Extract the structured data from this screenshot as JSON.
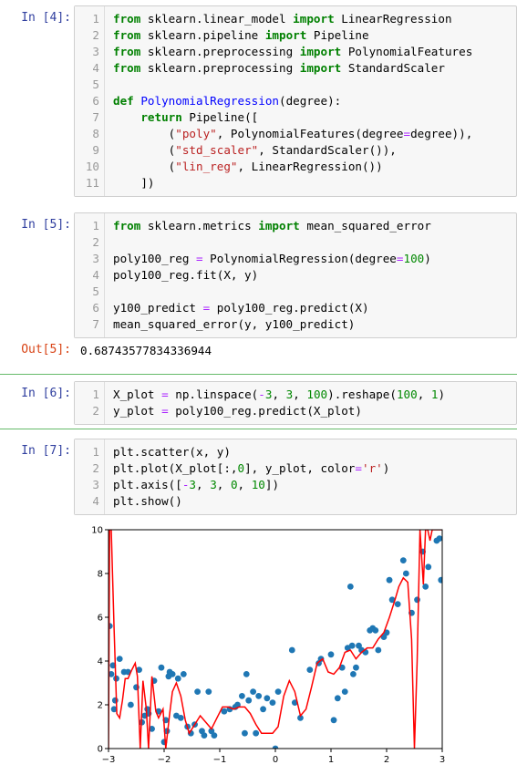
{
  "cells": [
    {
      "prompt": "In  [4]:",
      "lines": [
        {
          "n": "1",
          "tokens": [
            {
              "t": "from",
              "c": "kw"
            },
            {
              "t": " sklearn.linear_model ",
              "c": ""
            },
            {
              "t": "import",
              "c": "kw"
            },
            {
              "t": " LinearRegression",
              "c": ""
            }
          ]
        },
        {
          "n": "2",
          "tokens": [
            {
              "t": "from",
              "c": "kw"
            },
            {
              "t": " sklearn.pipeline ",
              "c": ""
            },
            {
              "t": "import",
              "c": "kw"
            },
            {
              "t": " Pipeline",
              "c": ""
            }
          ]
        },
        {
          "n": "3",
          "tokens": [
            {
              "t": "from",
              "c": "kw"
            },
            {
              "t": " sklearn.preprocessing ",
              "c": ""
            },
            {
              "t": "import",
              "c": "kw"
            },
            {
              "t": " PolynomialFeatures",
              "c": ""
            }
          ]
        },
        {
          "n": "4",
          "tokens": [
            {
              "t": "from",
              "c": "kw"
            },
            {
              "t": " sklearn.preprocessing ",
              "c": ""
            },
            {
              "t": "import",
              "c": "kw"
            },
            {
              "t": " StandardScaler",
              "c": ""
            }
          ]
        },
        {
          "n": "5",
          "tokens": []
        },
        {
          "n": "6",
          "tokens": [
            {
              "t": "def",
              "c": "kw"
            },
            {
              "t": " ",
              "c": ""
            },
            {
              "t": "PolynomialRegression",
              "c": "fn"
            },
            {
              "t": "(degree):",
              "c": ""
            }
          ]
        },
        {
          "n": "7",
          "tokens": [
            {
              "t": "    ",
              "c": ""
            },
            {
              "t": "return",
              "c": "kw"
            },
            {
              "t": " Pipeline([",
              "c": ""
            }
          ]
        },
        {
          "n": "8",
          "tokens": [
            {
              "t": "        (",
              "c": ""
            },
            {
              "t": "\"poly\"",
              "c": "str"
            },
            {
              "t": ", PolynomialFeatures(degree",
              "c": ""
            },
            {
              "t": "=",
              "c": "op"
            },
            {
              "t": "degree)),",
              "c": ""
            }
          ]
        },
        {
          "n": "9",
          "tokens": [
            {
              "t": "        (",
              "c": ""
            },
            {
              "t": "\"std_scaler\"",
              "c": "str"
            },
            {
              "t": ", StandardScaler()),",
              "c": ""
            }
          ]
        },
        {
          "n": "10",
          "tokens": [
            {
              "t": "        (",
              "c": ""
            },
            {
              "t": "\"lin_reg\"",
              "c": "str"
            },
            {
              "t": ", LinearRegression())",
              "c": ""
            }
          ]
        },
        {
          "n": "11",
          "tokens": [
            {
              "t": "    ])",
              "c": ""
            }
          ]
        }
      ]
    },
    {
      "prompt": "In  [5]:",
      "lines": [
        {
          "n": "1",
          "tokens": [
            {
              "t": "from",
              "c": "kw"
            },
            {
              "t": " sklearn.metrics ",
              "c": ""
            },
            {
              "t": "import",
              "c": "kw"
            },
            {
              "t": " mean_squared_error",
              "c": ""
            }
          ]
        },
        {
          "n": "2",
          "tokens": []
        },
        {
          "n": "3",
          "tokens": [
            {
              "t": "poly100_reg ",
              "c": ""
            },
            {
              "t": "=",
              "c": "op"
            },
            {
              "t": " PolynomialRegression(degree",
              "c": ""
            },
            {
              "t": "=",
              "c": "op"
            },
            {
              "t": "100",
              "c": "num"
            },
            {
              "t": ")",
              "c": ""
            }
          ]
        },
        {
          "n": "4",
          "tokens": [
            {
              "t": "poly100_reg.fit(X, y)",
              "c": ""
            }
          ]
        },
        {
          "n": "5",
          "tokens": []
        },
        {
          "n": "6",
          "tokens": [
            {
              "t": "y100_predict ",
              "c": ""
            },
            {
              "t": "=",
              "c": "op"
            },
            {
              "t": " poly100_reg.predict(X)",
              "c": ""
            }
          ]
        },
        {
          "n": "7",
          "tokens": [
            {
              "t": "mean_squared_error(y, y100_predict)",
              "c": ""
            }
          ]
        }
      ],
      "out_prompt": "Out[5]:",
      "output": "0.68743577834336944"
    },
    {
      "prompt": "In  [6]:",
      "lines": [
        {
          "n": "1",
          "tokens": [
            {
              "t": "X_plot ",
              "c": ""
            },
            {
              "t": "=",
              "c": "op"
            },
            {
              "t": " np.linspace(",
              "c": ""
            },
            {
              "t": "-",
              "c": "op"
            },
            {
              "t": "3",
              "c": "num"
            },
            {
              "t": ", ",
              "c": ""
            },
            {
              "t": "3",
              "c": "num"
            },
            {
              "t": ", ",
              "c": ""
            },
            {
              "t": "100",
              "c": "num"
            },
            {
              "t": ").reshape(",
              "c": ""
            },
            {
              "t": "100",
              "c": "num"
            },
            {
              "t": ", ",
              "c": ""
            },
            {
              "t": "1",
              "c": "num"
            },
            {
              "t": ")",
              "c": ""
            }
          ]
        },
        {
          "n": "2",
          "tokens": [
            {
              "t": "y_plot ",
              "c": ""
            },
            {
              "t": "=",
              "c": "op"
            },
            {
              "t": " poly100_reg.predict(X_plot)",
              "c": ""
            }
          ]
        }
      ]
    },
    {
      "prompt": "In  [7]:",
      "lines": [
        {
          "n": "1",
          "tokens": [
            {
              "t": "plt.scatter(x, y)",
              "c": ""
            }
          ]
        },
        {
          "n": "2",
          "tokens": [
            {
              "t": "plt.plot(X_plot[:,",
              "c": ""
            },
            {
              "t": "0",
              "c": "num"
            },
            {
              "t": "], y_plot, color",
              "c": ""
            },
            {
              "t": "=",
              "c": "op"
            },
            {
              "t": "'r'",
              "c": "str"
            },
            {
              "t": ")",
              "c": ""
            }
          ]
        },
        {
          "n": "3",
          "tokens": [
            {
              "t": "plt.axis([",
              "c": ""
            },
            {
              "t": "-",
              "c": "op"
            },
            {
              "t": "3",
              "c": "num"
            },
            {
              "t": ", ",
              "c": ""
            },
            {
              "t": "3",
              "c": "num"
            },
            {
              "t": ", ",
              "c": ""
            },
            {
              "t": "0",
              "c": "num"
            },
            {
              "t": ", ",
              "c": ""
            },
            {
              "t": "10",
              "c": "num"
            },
            {
              "t": "])",
              "c": ""
            }
          ]
        },
        {
          "n": "4",
          "tokens": [
            {
              "t": "plt.show()",
              "c": ""
            }
          ]
        }
      ]
    }
  ],
  "colors": {
    "prompt_in": "#303f9f",
    "prompt_out": "#d84315",
    "scatter": "#1f77b4",
    "line": "#ff0000",
    "selected_cell_bar": "#66bb6a"
  },
  "chart_data": {
    "type": "scatter",
    "xlim": [
      -3,
      3
    ],
    "ylim": [
      0,
      10
    ],
    "xticks": [
      "−3",
      "−2",
      "−1",
      "0",
      "1",
      "2",
      "3"
    ],
    "yticks": [
      "0",
      "2",
      "4",
      "6",
      "8",
      "10"
    ],
    "scatter_points": [
      [
        -2.98,
        5.6
      ],
      [
        -2.95,
        3.4
      ],
      [
        -2.92,
        3.8
      ],
      [
        -2.9,
        1.8
      ],
      [
        -2.88,
        2.2
      ],
      [
        -2.86,
        3.2
      ],
      [
        -2.8,
        4.1
      ],
      [
        -2.72,
        3.5
      ],
      [
        -2.65,
        3.5
      ],
      [
        -2.6,
        2.0
      ],
      [
        -2.5,
        2.8
      ],
      [
        -2.45,
        3.6
      ],
      [
        -2.4,
        1.2
      ],
      [
        -2.35,
        1.5
      ],
      [
        -2.3,
        1.8
      ],
      [
        -2.28,
        1.6
      ],
      [
        -2.22,
        0.9
      ],
      [
        -2.18,
        3.1
      ],
      [
        -2.1,
        1.7
      ],
      [
        -2.05,
        3.7
      ],
      [
        -2.0,
        0.3
      ],
      [
        -1.97,
        1.3
      ],
      [
        -1.95,
        0.8
      ],
      [
        -1.92,
        3.3
      ],
      [
        -1.9,
        3.5
      ],
      [
        -1.85,
        3.4
      ],
      [
        -1.78,
        1.5
      ],
      [
        -1.75,
        3.2
      ],
      [
        -1.7,
        1.4
      ],
      [
        -1.65,
        3.4
      ],
      [
        -1.58,
        1.0
      ],
      [
        -1.52,
        0.7
      ],
      [
        -1.45,
        1.1
      ],
      [
        -1.4,
        2.6
      ],
      [
        -1.32,
        0.8
      ],
      [
        -1.28,
        0.6
      ],
      [
        -1.2,
        2.6
      ],
      [
        -1.15,
        0.8
      ],
      [
        -1.1,
        0.6
      ],
      [
        -0.92,
        1.7
      ],
      [
        -0.82,
        1.8
      ],
      [
        -0.72,
        1.9
      ],
      [
        -0.68,
        2.0
      ],
      [
        -0.6,
        2.4
      ],
      [
        -0.55,
        0.7
      ],
      [
        -0.52,
        3.4
      ],
      [
        -0.48,
        2.2
      ],
      [
        -0.4,
        2.6
      ],
      [
        -0.35,
        0.7
      ],
      [
        -0.3,
        2.4
      ],
      [
        -0.22,
        1.8
      ],
      [
        -0.15,
        2.3
      ],
      [
        -0.05,
        2.1
      ],
      [
        0.0,
        0.0
      ],
      [
        0.05,
        2.6
      ],
      [
        0.3,
        4.5
      ],
      [
        0.35,
        2.1
      ],
      [
        0.45,
        1.4
      ],
      [
        0.62,
        3.6
      ],
      [
        0.78,
        3.9
      ],
      [
        0.82,
        4.1
      ],
      [
        1.0,
        4.3
      ],
      [
        1.05,
        1.3
      ],
      [
        1.12,
        2.3
      ],
      [
        1.2,
        3.7
      ],
      [
        1.25,
        2.6
      ],
      [
        1.3,
        4.6
      ],
      [
        1.35,
        7.4
      ],
      [
        1.38,
        4.7
      ],
      [
        1.4,
        3.4
      ],
      [
        1.45,
        3.7
      ],
      [
        1.5,
        4.7
      ],
      [
        1.55,
        4.5
      ],
      [
        1.62,
        4.4
      ],
      [
        1.7,
        5.4
      ],
      [
        1.75,
        5.5
      ],
      [
        1.8,
        5.4
      ],
      [
        1.85,
        4.5
      ],
      [
        1.95,
        5.1
      ],
      [
        2.0,
        5.3
      ],
      [
        2.05,
        7.7
      ],
      [
        2.1,
        6.8
      ],
      [
        2.2,
        6.6
      ],
      [
        2.3,
        8.6
      ],
      [
        2.35,
        8.0
      ],
      [
        2.45,
        6.2
      ],
      [
        2.55,
        6.8
      ],
      [
        2.65,
        9.0
      ],
      [
        2.7,
        7.4
      ],
      [
        2.75,
        8.3
      ],
      [
        2.9,
        9.5
      ],
      [
        2.95,
        9.6
      ],
      [
        2.98,
        7.7
      ]
    ],
    "line_points": [
      [
        -3.0,
        0.0
      ],
      [
        -2.98,
        10.0
      ],
      [
        -2.95,
        10.0
      ],
      [
        -2.9,
        5.5
      ],
      [
        -2.85,
        1.6
      ],
      [
        -2.8,
        1.4
      ],
      [
        -2.75,
        2.2
      ],
      [
        -2.7,
        3.2
      ],
      [
        -2.65,
        3.2
      ],
      [
        -2.58,
        3.6
      ],
      [
        -2.52,
        3.9
      ],
      [
        -2.48,
        3.3
      ],
      [
        -2.43,
        0.0
      ],
      [
        -2.38,
        3.1
      ],
      [
        -2.32,
        1.8
      ],
      [
        -2.28,
        0.0
      ],
      [
        -2.22,
        3.3
      ],
      [
        -2.15,
        1.7
      ],
      [
        -2.1,
        1.4
      ],
      [
        -2.02,
        1.8
      ],
      [
        -1.97,
        0.0
      ],
      [
        -1.9,
        1.6
      ],
      [
        -1.85,
        2.6
      ],
      [
        -1.78,
        3.0
      ],
      [
        -1.7,
        2.4
      ],
      [
        -1.62,
        1.3
      ],
      [
        -1.55,
        0.7
      ],
      [
        -1.45,
        1.1
      ],
      [
        -1.35,
        1.5
      ],
      [
        -1.25,
        1.2
      ],
      [
        -1.15,
        0.9
      ],
      [
        -1.05,
        1.4
      ],
      [
        -0.95,
        1.9
      ],
      [
        -0.85,
        1.9
      ],
      [
        -0.75,
        1.8
      ],
      [
        -0.65,
        1.9
      ],
      [
        -0.55,
        1.9
      ],
      [
        -0.45,
        1.6
      ],
      [
        -0.35,
        1.1
      ],
      [
        -0.25,
        0.7
      ],
      [
        -0.15,
        0.7
      ],
      [
        -0.05,
        0.7
      ],
      [
        0.05,
        1.0
      ],
      [
        0.15,
        2.4
      ],
      [
        0.25,
        3.1
      ],
      [
        0.35,
        2.6
      ],
      [
        0.45,
        1.5
      ],
      [
        0.55,
        1.8
      ],
      [
        0.65,
        2.8
      ],
      [
        0.75,
        3.9
      ],
      [
        0.85,
        4.1
      ],
      [
        0.95,
        3.5
      ],
      [
        1.05,
        3.4
      ],
      [
        1.15,
        3.7
      ],
      [
        1.25,
        4.4
      ],
      [
        1.35,
        4.5
      ],
      [
        1.45,
        4.1
      ],
      [
        1.55,
        4.4
      ],
      [
        1.65,
        4.6
      ],
      [
        1.75,
        4.6
      ],
      [
        1.85,
        5.0
      ],
      [
        1.95,
        5.3
      ],
      [
        2.05,
        6.0
      ],
      [
        2.15,
        6.8
      ],
      [
        2.22,
        7.4
      ],
      [
        2.3,
        7.8
      ],
      [
        2.38,
        7.6
      ],
      [
        2.45,
        5.0
      ],
      [
        2.5,
        0.0
      ],
      [
        2.55,
        4.0
      ],
      [
        2.6,
        10.0
      ],
      [
        2.66,
        7.5
      ],
      [
        2.7,
        10.0
      ],
      [
        2.74,
        10.0
      ],
      [
        2.78,
        9.5
      ],
      [
        2.82,
        10.0
      ],
      [
        2.88,
        10.0
      ],
      [
        2.95,
        10.0
      ],
      [
        3.0,
        10.0
      ]
    ]
  }
}
